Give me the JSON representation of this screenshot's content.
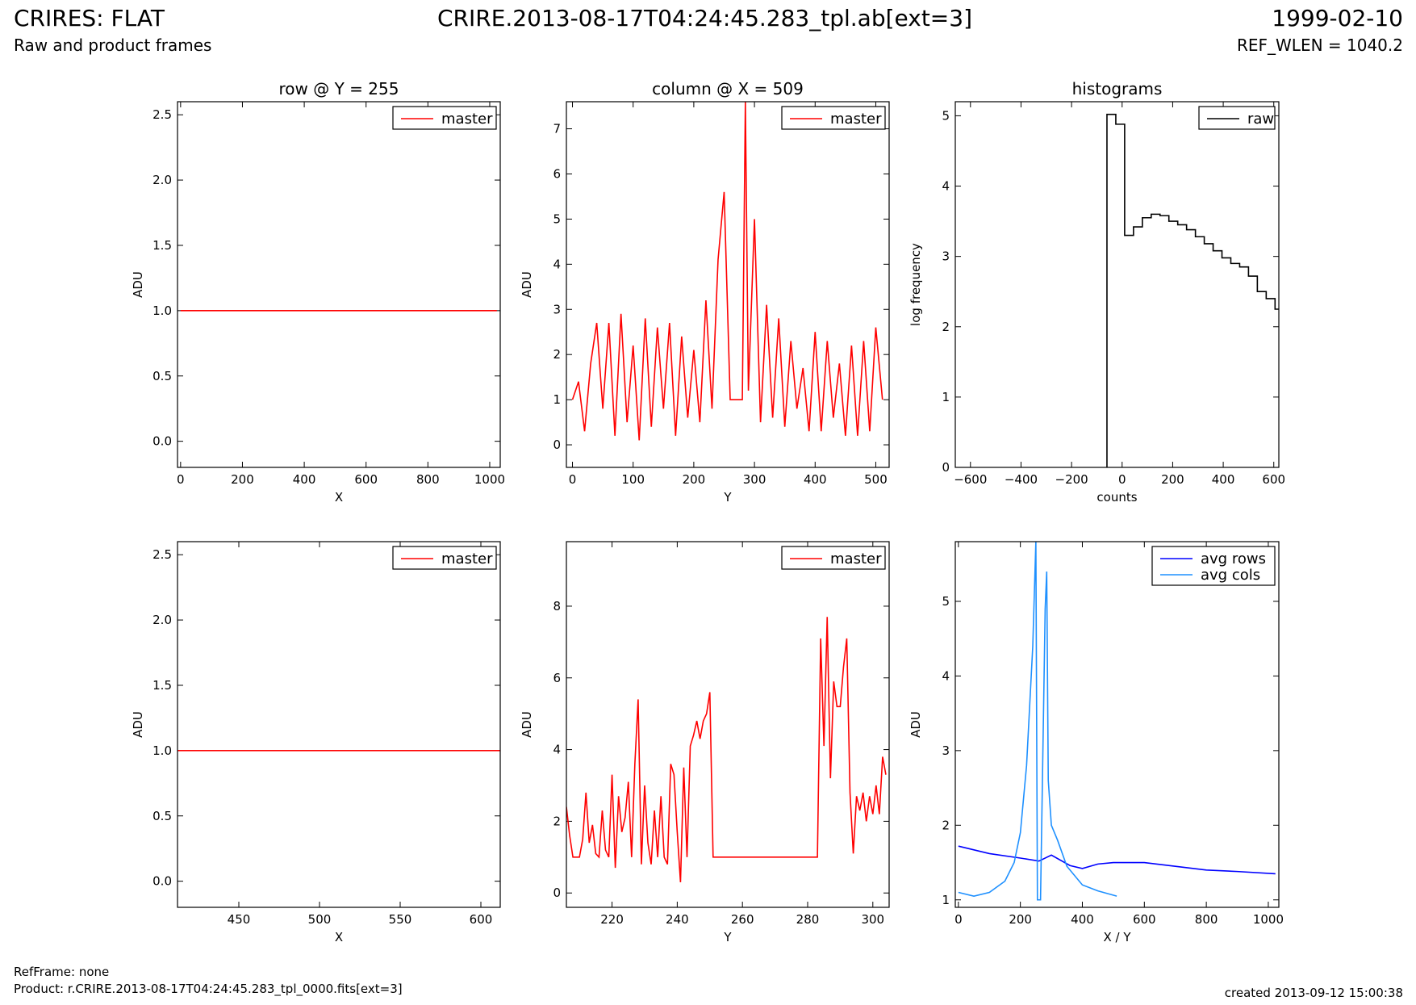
{
  "header": {
    "title_left": "CRIRES: FLAT",
    "subtitle_left": "Raw and product frames",
    "title_center": "CRIRE.2013-08-17T04:24:45.283_tpl.ab[ext=3]",
    "title_right": "1999-02-10",
    "subtitle_right": "REF_WLEN = 1040.2"
  },
  "footer": {
    "refframe": "RefFrame: none",
    "product": "Product: r.CRIRE.2013-08-17T04:24:45.283_tpl_0000.fits[ext=3]",
    "created": "created 2013-09-12 15:00:38"
  },
  "colors": {
    "master": "#ff0000",
    "raw": "#000000",
    "avg_rows": "#0000ff",
    "avg_cols": "#1e90ff"
  },
  "chart_data": [
    {
      "type": "line",
      "title": "row @ Y = 255",
      "xlabel": "X",
      "ylabel": "ADU",
      "xlim": [
        -10,
        1034
      ],
      "ylim": [
        -0.2,
        2.6
      ],
      "xticks": [
        "0",
        "200",
        "400",
        "600",
        "800",
        "1000"
      ],
      "yticks": [
        "0.0",
        "0.5",
        "1.0",
        "1.5",
        "2.0",
        "2.5"
      ],
      "legend": "top-right",
      "series": [
        {
          "name": "master",
          "x": [
            0,
            1023
          ],
          "values": [
            1.0,
            1.0
          ]
        }
      ]
    },
    {
      "type": "line",
      "title": "column @ X = 509",
      "xlabel": "Y",
      "ylabel": "ADU",
      "xlim": [
        -10,
        522
      ],
      "ylim": [
        -0.5,
        7.6
      ],
      "xticks": [
        "0",
        "100",
        "200",
        "300",
        "400",
        "500"
      ],
      "yticks": [
        "0",
        "1",
        "2",
        "3",
        "4",
        "5",
        "6",
        "7"
      ],
      "legend": "top-right",
      "series": [
        {
          "name": "master",
          "x": [
            0,
            10,
            20,
            30,
            40,
            50,
            60,
            70,
            80,
            90,
            100,
            110,
            120,
            130,
            140,
            150,
            160,
            170,
            180,
            190,
            200,
            210,
            220,
            230,
            240,
            250,
            260,
            270,
            280,
            285,
            290,
            300,
            310,
            320,
            330,
            340,
            350,
            360,
            370,
            380,
            390,
            400,
            410,
            420,
            430,
            440,
            450,
            460,
            470,
            480,
            490,
            500,
            511
          ],
          "values": [
            1.0,
            1.4,
            0.3,
            1.8,
            2.7,
            0.8,
            2.7,
            0.2,
            2.9,
            0.5,
            2.2,
            0.1,
            2.8,
            0.4,
            2.6,
            0.8,
            2.7,
            0.2,
            2.4,
            0.6,
            2.1,
            0.5,
            3.2,
            0.8,
            4.1,
            5.6,
            1.0,
            1.0,
            1.0,
            7.6,
            1.2,
            5.0,
            0.5,
            3.1,
            0.6,
            2.8,
            0.4,
            2.3,
            0.8,
            1.7,
            0.3,
            2.5,
            0.3,
            2.3,
            0.6,
            1.8,
            0.2,
            2.2,
            0.2,
            2.3,
            0.3,
            2.6,
            1.0
          ]
        }
      ]
    },
    {
      "type": "line",
      "title": "histograms",
      "xlabel": "counts",
      "ylabel": "log frequency",
      "xlim": [
        -660,
        620
      ],
      "ylim": [
        0,
        5.2
      ],
      "xticks": [
        "−600",
        "−400",
        "−200",
        "0",
        "200",
        "400",
        "600"
      ],
      "yticks": [
        "0",
        "1",
        "2",
        "3",
        "4",
        "5"
      ],
      "legend": "top-right",
      "series": [
        {
          "name": "raw",
          "x": [
            -60,
            -25,
            10,
            45,
            80,
            115,
            150,
            185,
            220,
            255,
            290,
            325,
            360,
            395,
            430,
            465,
            500,
            535,
            570,
            605
          ],
          "values": [
            5.02,
            4.88,
            3.3,
            3.42,
            3.55,
            3.6,
            3.58,
            3.5,
            3.45,
            3.38,
            3.28,
            3.18,
            3.08,
            2.98,
            2.9,
            2.85,
            2.72,
            2.5,
            2.4,
            2.25
          ]
        }
      ]
    },
    {
      "type": "line",
      "xlabel": "X",
      "ylabel": "ADU",
      "xlim": [
        412,
        612
      ],
      "ylim": [
        -0.2,
        2.6
      ],
      "xticks": [
        "450",
        "500",
        "550",
        "600"
      ],
      "yticks": [
        "0.0",
        "0.5",
        "1.0",
        "1.5",
        "2.0",
        "2.5"
      ],
      "legend": "top-right",
      "series": [
        {
          "name": "master",
          "x": [
            412,
            612
          ],
          "values": [
            1.0,
            1.0
          ]
        }
      ]
    },
    {
      "type": "line",
      "xlabel": "Y",
      "ylabel": "ADU",
      "xlim": [
        206,
        305
      ],
      "ylim": [
        -0.4,
        9.8
      ],
      "xticks": [
        "220",
        "240",
        "260",
        "280",
        "300"
      ],
      "yticks": [
        "0",
        "2",
        "4",
        "6",
        "8"
      ],
      "legend": "top-right",
      "series": [
        {
          "name": "master",
          "x": [
            206,
            207,
            208,
            209,
            210,
            211,
            212,
            213,
            214,
            215,
            216,
            217,
            218,
            219,
            220,
            221,
            222,
            223,
            224,
            225,
            226,
            227,
            228,
            229,
            230,
            231,
            232,
            233,
            234,
            235,
            236,
            237,
            238,
            239,
            240,
            241,
            242,
            243,
            244,
            245,
            246,
            247,
            248,
            249,
            250,
            251,
            252,
            283,
            284,
            285,
            286,
            287,
            288,
            289,
            290,
            291,
            292,
            293,
            294,
            295,
            296,
            297,
            298,
            299,
            300,
            301,
            302,
            303,
            304
          ],
          "values": [
            2.4,
            1.6,
            1.0,
            1.0,
            1.0,
            1.5,
            2.8,
            1.4,
            1.9,
            1.1,
            1.0,
            2.3,
            1.2,
            1.0,
            3.3,
            0.7,
            2.7,
            1.7,
            2.1,
            3.1,
            1.0,
            3.6,
            5.4,
            0.8,
            3.0,
            1.4,
            0.8,
            2.3,
            1.0,
            2.7,
            1.0,
            0.8,
            3.6,
            3.3,
            1.7,
            0.3,
            3.5,
            1.0,
            4.1,
            4.4,
            4.8,
            4.3,
            4.8,
            5.0,
            5.6,
            1.0,
            1.0,
            1.0,
            7.1,
            4.1,
            7.7,
            3.2,
            5.9,
            5.2,
            5.2,
            6.3,
            7.1,
            2.8,
            1.1,
            2.7,
            2.3,
            2.8,
            2.0,
            2.7,
            2.2,
            3.0,
            2.2,
            3.8,
            3.3
          ]
        }
      ]
    },
    {
      "type": "line",
      "xlabel": "X / Y",
      "ylabel": "ADU",
      "xlim": [
        -10,
        1034
      ],
      "ylim": [
        0.9,
        5.8
      ],
      "xticks": [
        "0",
        "200",
        "400",
        "600",
        "800",
        "1000"
      ],
      "yticks": [
        "1",
        "2",
        "3",
        "4",
        "5"
      ],
      "legend": "top-right",
      "series": [
        {
          "name": "avg rows",
          "x": [
            0,
            100,
            200,
            260,
            300,
            360,
            400,
            450,
            500,
            600,
            700,
            800,
            900,
            1023
          ],
          "values": [
            1.72,
            1.62,
            1.56,
            1.52,
            1.6,
            1.46,
            1.42,
            1.48,
            1.5,
            1.5,
            1.45,
            1.4,
            1.38,
            1.35
          ]
        },
        {
          "name": "avg cols",
          "x": [
            0,
            50,
            100,
            150,
            180,
            200,
            220,
            240,
            250,
            255,
            265,
            280,
            285,
            290,
            300,
            320,
            350,
            400,
            450,
            511
          ],
          "values": [
            1.1,
            1.05,
            1.1,
            1.25,
            1.5,
            1.9,
            2.8,
            4.4,
            5.8,
            1.0,
            1.0,
            4.9,
            5.4,
            2.6,
            2.0,
            1.8,
            1.45,
            1.2,
            1.12,
            1.05
          ]
        }
      ]
    }
  ]
}
